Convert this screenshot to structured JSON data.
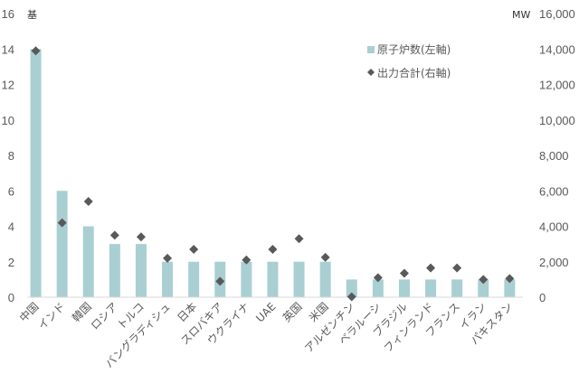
{
  "chart_data": {
    "type": "bar",
    "title": "",
    "categories": [
      "中国",
      "インド",
      "韓国",
      "ロシア",
      "トルコ",
      "バングラディシュ",
      "日本",
      "スロバキア",
      "ウクライナ",
      "UAE",
      "英国",
      "米国",
      "アルゼンチン",
      "ベラルーシ",
      "ブラジル",
      "フィンランド",
      "フランス",
      "イラン",
      "パキスタン"
    ],
    "series": [
      {
        "name": "原子炉数(左軸)",
        "type": "bar",
        "axis": "left",
        "color": "#a9cfd3",
        "values": [
          14,
          6,
          4,
          3,
          3,
          2,
          2,
          2,
          2,
          2,
          2,
          2,
          1,
          1,
          1,
          1,
          1,
          1,
          1
        ]
      },
      {
        "name": "出力合計(右軸)",
        "type": "scatter",
        "marker": "diamond",
        "axis": "right",
        "color": "#595959",
        "values": [
          13900,
          4200,
          5400,
          3500,
          3400,
          2200,
          2700,
          900,
          2100,
          2700,
          3300,
          2250,
          25,
          1100,
          1350,
          1650,
          1650,
          1000,
          1050
        ]
      }
    ],
    "left_axis": {
      "unit": "基",
      "ylim": [
        0,
        16
      ],
      "ticks": [
        0,
        2,
        4,
        6,
        8,
        10,
        12,
        14,
        16
      ]
    },
    "right_axis": {
      "unit": "MW",
      "ylim": [
        0,
        16000
      ],
      "ticks": [
        "0",
        "2,000",
        "4,000",
        "6,000",
        "8,000",
        "10,000",
        "12,000",
        "14,000",
        "16,000"
      ]
    },
    "xlabel": "",
    "ylabel_left": "基",
    "ylabel_right": "MW",
    "grid": false,
    "legend": {
      "position": "upper-right-inside",
      "entries": [
        "原子炉数(左軸)",
        "出力合計(右軸)"
      ]
    }
  },
  "legend": {
    "bar_label": "原子炉数(左軸)",
    "marker_label": "出力合計(右軸)"
  },
  "axes": {
    "left_unit": "基",
    "right_unit": "MW"
  }
}
